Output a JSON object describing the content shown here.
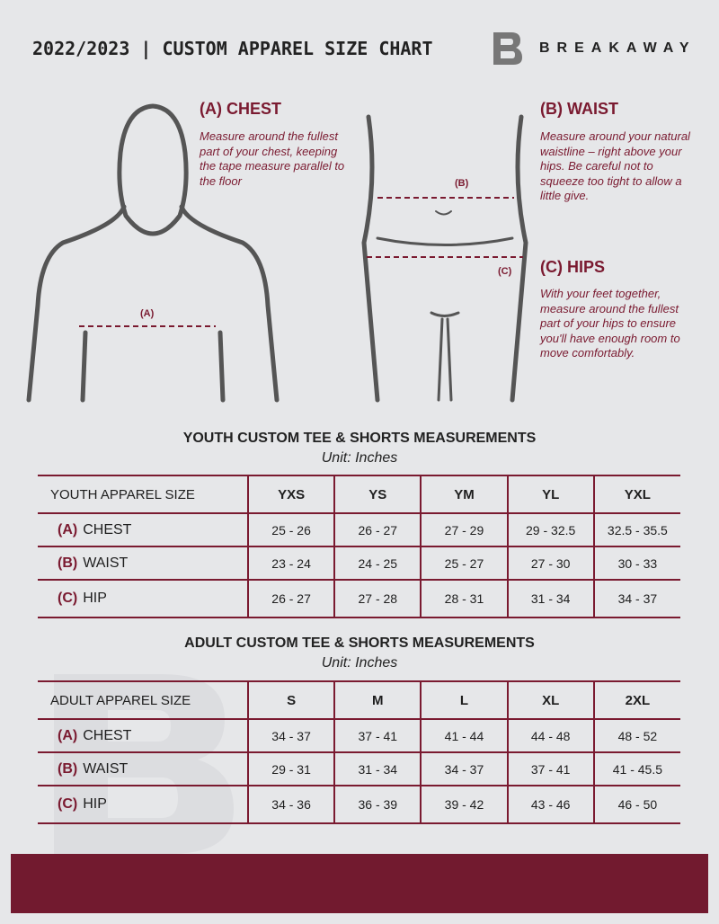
{
  "header": {
    "title": "2022/2023 | CUSTOM APPAREL SIZE CHART",
    "brand": "BREAKAWAY",
    "logo_letter": "B"
  },
  "chest": {
    "heading": "(A) CHEST",
    "text": "Measure around the fullest part of your chest, keeping the tape measure parallel to the floor",
    "marker": "(A)"
  },
  "waist": {
    "heading": "(B) WAIST",
    "text": "Measure around your natural waistline – right above your hips. Be careful not to squeeze too tight to allow a little give.",
    "marker": "(B)"
  },
  "hips": {
    "heading": "(C) HIPS",
    "text": "With your feet together, measure around the fullest part of your hips to ensure you'll have enough room to move comfortably.",
    "marker": "(C)"
  },
  "youth": {
    "title": "YOUTH CUSTOM TEE & SHORTS MEASUREMENTS",
    "unit": "Unit: Inches",
    "header": [
      "YOUTH APPAREL SIZE",
      "YXS",
      "YS",
      "YM",
      "YL",
      "YXL"
    ],
    "rows": [
      {
        "code": "(A)",
        "name": "CHEST",
        "values": [
          "25 - 26",
          "26 - 27",
          "27 - 29",
          "29 - 32.5",
          "32.5 - 35.5"
        ]
      },
      {
        "code": "(B)",
        "name": "WAIST",
        "values": [
          "23 - 24",
          "24 - 25",
          "25 - 27",
          "27 - 30",
          "30 - 33"
        ]
      },
      {
        "code": "(C)",
        "name": "HIP",
        "values": [
          "26 - 27",
          "27 - 28",
          "28 - 31",
          "31 - 34",
          "34 - 37"
        ]
      }
    ]
  },
  "adult": {
    "title": "ADULT CUSTOM TEE & SHORTS MEASUREMENTS",
    "unit": "Unit: Inches",
    "header": [
      "ADULT APPAREL SIZE",
      "S",
      "M",
      "L",
      "XL",
      "2XL"
    ],
    "rows": [
      {
        "code": "(A)",
        "name": "CHEST",
        "values": [
          "34 - 37",
          "37 - 41",
          "41 - 44",
          "44 - 48",
          "48 - 52"
        ]
      },
      {
        "code": "(B)",
        "name": "WAIST",
        "values": [
          "29 - 31",
          "31 - 34",
          "34 - 37",
          "37 - 41",
          "41 - 45.5"
        ]
      },
      {
        "code": "(C)",
        "name": "HIP",
        "values": [
          "34 - 36",
          "36 - 39",
          "39 - 42",
          "43 - 46",
          "46 - 50"
        ]
      }
    ]
  },
  "colors": {
    "accent": "#7a1a30",
    "background": "#e6e7e9",
    "footer": "#721a2f"
  }
}
